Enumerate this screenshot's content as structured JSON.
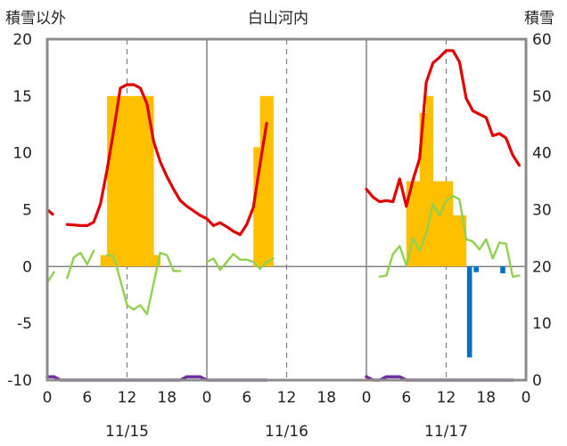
{
  "header": {
    "left_label": "積雪以外",
    "title": "白山河内",
    "right_label": "積雪"
  },
  "chart_data": {
    "type": "line",
    "title": "白山河内",
    "ylabel_left": "積雪以外",
    "ylabel_right": "積雪",
    "ylim_left": [
      -10,
      20
    ],
    "ylim_right": [
      0,
      60
    ],
    "yticks_left": [
      "20",
      "15",
      "10",
      "5",
      "0",
      "-5",
      "-10"
    ],
    "yticks_right": [
      "60",
      "50",
      "40",
      "30",
      "20",
      "10",
      "0"
    ],
    "x_unit": "hour",
    "x_range": [
      0,
      72
    ],
    "xtick_labels": [
      "0",
      "6",
      "12",
      "18",
      "0",
      "6",
      "12",
      "18",
      "0",
      "6",
      "12",
      "18",
      "0"
    ],
    "day_labels": [
      "11/15",
      "11/16",
      "11/17"
    ],
    "grid": {
      "day_separators": true,
      "noon_dashed": true,
      "zero_line": true
    },
    "colors": {
      "temperature": "#e00000",
      "snow_depth": "#ffc000",
      "humidity_like": "#92d050",
      "precip": "#0070c0",
      "bottom": "#7030a0"
    },
    "series": [
      {
        "name": "",
        "kind": "line",
        "axis": "left",
        "color": "#e00000",
        "points": [
          [
            0,
            5
          ],
          [
            0.8,
            4.6
          ],
          null,
          [
            3,
            3.7
          ],
          [
            4,
            3.65
          ],
          [
            5,
            3.6
          ],
          [
            6,
            3.6
          ],
          [
            7,
            3.9
          ],
          [
            8,
            5.5
          ],
          [
            9,
            8.5
          ],
          [
            10,
            12
          ],
          [
            11,
            15.7
          ],
          [
            12,
            16
          ],
          [
            13,
            16
          ],
          [
            14,
            15.7
          ],
          [
            15,
            14.3
          ],
          [
            16,
            11
          ],
          [
            17,
            9.2
          ],
          [
            18,
            7.9
          ],
          [
            19,
            6.8
          ],
          [
            20,
            5.8
          ],
          [
            21,
            5.3
          ],
          [
            22,
            4.9
          ],
          [
            23,
            4.5
          ],
          [
            24,
            4.2
          ],
          [
            25,
            3.6
          ],
          [
            26,
            3.85
          ],
          [
            27,
            3.5
          ],
          [
            28,
            3.1
          ],
          [
            29,
            2.8
          ],
          [
            30,
            3.7
          ],
          [
            31,
            5.2
          ],
          [
            32,
            9
          ],
          [
            33,
            12.6
          ],
          null,
          [
            48,
            6.8
          ],
          [
            49,
            6.1
          ],
          [
            50,
            5.7
          ],
          [
            51,
            5.8
          ],
          [
            52,
            5.7
          ],
          [
            53,
            7.7
          ],
          [
            54,
            5.3
          ],
          [
            55,
            7.6
          ],
          [
            56,
            9.5
          ],
          [
            57,
            16.2
          ],
          [
            58,
            17.9
          ],
          [
            59,
            18.4
          ],
          [
            60,
            19
          ],
          [
            61,
            19
          ],
          [
            62,
            18
          ],
          [
            63,
            14.8
          ],
          [
            64,
            13.7
          ],
          [
            65,
            13.4
          ],
          [
            66,
            13.1
          ],
          [
            67,
            11.5
          ],
          [
            68,
            11.7
          ],
          [
            69,
            11.3
          ],
          [
            70,
            9.8
          ],
          [
            71,
            8.9
          ]
        ]
      },
      {
        "name": "",
        "kind": "bar",
        "axis": "right",
        "color": "#ffc000",
        "bars": [
          [
            8,
            22
          ],
          [
            9,
            50
          ],
          [
            10,
            50
          ],
          [
            11,
            50
          ],
          [
            12,
            50
          ],
          [
            13,
            50
          ],
          [
            14,
            50
          ],
          [
            15,
            50
          ],
          [
            16,
            22
          ],
          [
            31,
            41
          ],
          [
            32,
            50
          ],
          [
            33,
            50
          ],
          [
            54,
            35
          ],
          [
            55,
            35
          ],
          [
            56,
            47
          ],
          [
            57,
            50
          ],
          [
            58,
            35
          ],
          [
            59,
            35
          ],
          [
            60,
            35
          ],
          [
            61,
            29
          ],
          [
            62,
            29
          ]
        ]
      },
      {
        "name": "",
        "kind": "line",
        "axis": "left",
        "color": "#92d050",
        "points": [
          [
            0,
            -1.4
          ],
          [
            1,
            -0.5
          ],
          null,
          [
            3,
            -1
          ],
          [
            4,
            0.8
          ],
          [
            5,
            1.2
          ],
          [
            6,
            0.2
          ],
          [
            7,
            1.4
          ],
          null,
          [
            9,
            1
          ],
          [
            10,
            0.9
          ],
          [
            11,
            -1.2
          ],
          [
            12,
            -3.4
          ],
          [
            13,
            -3.8
          ],
          [
            14,
            -3.4
          ],
          [
            15,
            -4.2
          ],
          [
            16,
            -1.5
          ],
          [
            17,
            1.2
          ],
          [
            18,
            1
          ],
          [
            19,
            -0.4
          ],
          [
            20,
            -0.4
          ],
          null,
          [
            24,
            0.4
          ],
          [
            25,
            0.7
          ],
          [
            26,
            -0.3
          ],
          [
            27,
            0.4
          ],
          [
            28,
            1.1
          ],
          [
            29,
            0.6
          ],
          [
            30,
            0.6
          ],
          [
            31,
            0.4
          ],
          [
            32,
            -0.2
          ],
          [
            33,
            0.4
          ],
          [
            34,
            0.7
          ],
          null,
          [
            50,
            -0.9
          ],
          [
            51,
            -0.8
          ],
          [
            52,
            1.1
          ],
          [
            53,
            1.8
          ],
          [
            54,
            0.1
          ],
          [
            55,
            2.5
          ],
          [
            56,
            1.4
          ],
          [
            57,
            2.9
          ],
          [
            58,
            5.5
          ],
          [
            59,
            4.5
          ],
          [
            60,
            5.8
          ],
          [
            61,
            6.2
          ],
          [
            62,
            5.9
          ],
          [
            63,
            2.4
          ],
          [
            64,
            2.2
          ],
          [
            65,
            1.5
          ],
          [
            66,
            2.4
          ],
          [
            67,
            0.7
          ],
          [
            68,
            2.1
          ],
          [
            69,
            2
          ],
          [
            70,
            -0.9
          ],
          [
            71,
            -0.8
          ]
        ]
      },
      {
        "name": "",
        "kind": "bar",
        "axis": "left",
        "color": "#0070c0",
        "bars": [
          [
            63,
            -8
          ],
          [
            64,
            -0.5
          ],
          [
            68,
            -0.6
          ]
        ]
      },
      {
        "name": "",
        "kind": "line",
        "axis": "left",
        "color": "#7030a0",
        "points": [
          [
            0,
            -9.7
          ],
          [
            1,
            -9.7
          ],
          [
            2,
            -10
          ],
          [
            20,
            -10
          ],
          [
            21,
            -9.7
          ],
          [
            23,
            -9.7
          ],
          [
            24,
            -10
          ],
          [
            33,
            -10
          ],
          null,
          [
            48,
            -9.7
          ],
          [
            49,
            -10
          ],
          [
            50,
            -10
          ],
          [
            51,
            -9.7
          ],
          [
            53,
            -9.7
          ],
          [
            54,
            -10
          ],
          [
            70,
            -10
          ]
        ]
      }
    ]
  }
}
